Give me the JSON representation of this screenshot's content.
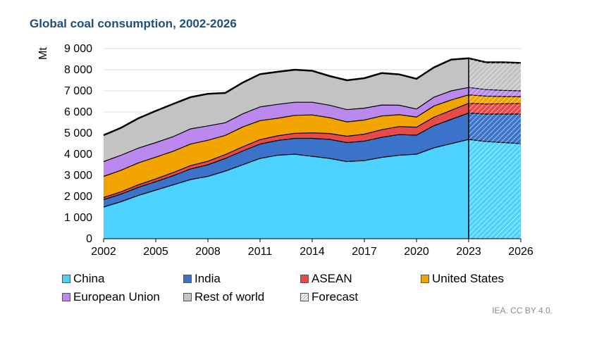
{
  "chart_data": {
    "type": "area",
    "title": "Global coal consumption, 2002-2026",
    "ylabel": "Mt",
    "xlabel": "",
    "ylim": [
      0,
      9000
    ],
    "y_ticks": [
      "0",
      "1 000",
      "2 000",
      "3 000",
      "4 000",
      "5 000",
      "6 000",
      "7 000",
      "8 000",
      "9 000"
    ],
    "x_ticks": [
      "2002",
      "2005",
      "2008",
      "2011",
      "2014",
      "2017",
      "2020",
      "2023",
      "2026"
    ],
    "x": [
      2002,
      2003,
      2004,
      2005,
      2006,
      2007,
      2008,
      2009,
      2010,
      2011,
      2012,
      2013,
      2014,
      2015,
      2016,
      2017,
      2018,
      2019,
      2020,
      2021,
      2022,
      2023,
      2024,
      2025,
      2026
    ],
    "forecast_start": 2023,
    "series": [
      {
        "name": "China",
        "color": "#4dd2ff",
        "values": [
          1500,
          1750,
          2050,
          2300,
          2550,
          2800,
          2950,
          3200,
          3500,
          3800,
          3950,
          4000,
          3900,
          3800,
          3650,
          3700,
          3850,
          3950,
          4000,
          4300,
          4500,
          4700,
          4600,
          4550,
          4500
        ]
      },
      {
        "name": "India",
        "color": "#3a73c9",
        "values": [
          350,
          360,
          380,
          400,
          430,
          500,
          550,
          600,
          650,
          680,
          700,
          750,
          850,
          900,
          900,
          920,
          950,
          980,
          900,
          1050,
          1150,
          1250,
          1300,
          1350,
          1400
        ]
      },
      {
        "name": "ASEAN",
        "color": "#e84a4a",
        "values": [
          100,
          110,
          120,
          130,
          150,
          160,
          170,
          180,
          200,
          210,
          220,
          240,
          260,
          280,
          300,
          330,
          360,
          380,
          380,
          400,
          430,
          460,
          480,
          490,
          500
        ]
      },
      {
        "name": "United States",
        "color": "#f2a500",
        "values": [
          1000,
          1020,
          1040,
          1030,
          1010,
          1020,
          990,
          910,
          940,
          900,
          830,
          850,
          850,
          750,
          680,
          670,
          650,
          560,
          480,
          530,
          490,
          400,
          370,
          340,
          320
        ]
      },
      {
        "name": "European Union",
        "color": "#bb88ee",
        "values": [
          700,
          710,
          700,
          690,
          690,
          720,
          680,
          600,
          620,
          650,
          660,
          620,
          600,
          590,
          580,
          560,
          520,
          450,
          380,
          420,
          430,
          350,
          310,
          290,
          280
        ]
      },
      {
        "name": "Rest of world",
        "color": "#c3c3c3",
        "values": [
          1250,
          1300,
          1410,
          1500,
          1550,
          1500,
          1520,
          1410,
          1480,
          1550,
          1540,
          1540,
          1490,
          1380,
          1390,
          1420,
          1510,
          1460,
          1430,
          1410,
          1480,
          1380,
          1290,
          1330,
          1320
        ]
      }
    ],
    "legend": [
      "China",
      "India",
      "ASEAN",
      "United States",
      "European Union",
      "Rest of world",
      "Forecast"
    ],
    "legend_position": "bottom"
  },
  "credit": "IEA. CC BY 4.0."
}
